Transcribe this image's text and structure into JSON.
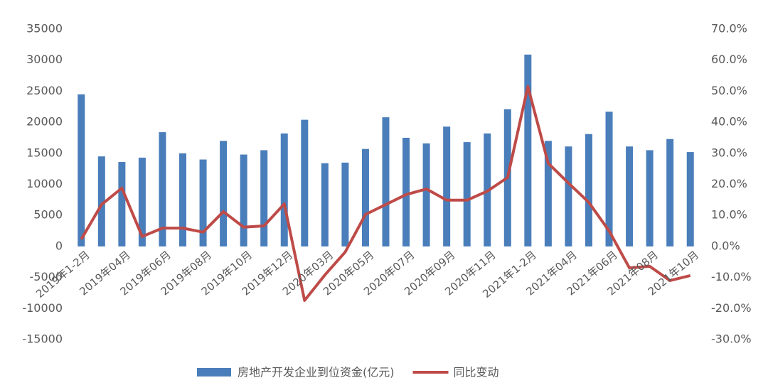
{
  "chart_data": {
    "type": "bar-line",
    "categories": [
      "2019年1-2月",
      null,
      "2019年04月",
      null,
      "2019年06月",
      null,
      "2019年08月",
      null,
      "2019年10月",
      null,
      "2019年12月",
      null,
      "2020年03月",
      null,
      "2020年05月",
      null,
      "2020年07月",
      null,
      "2020年09月",
      null,
      "2020年11月",
      null,
      "2021年1-2月",
      null,
      "2021年04月",
      null,
      "2021年06月",
      null,
      "2021年08月",
      null,
      "2021年10月"
    ],
    "series": [
      {
        "name": "房地产开发企业到位资金(亿元)",
        "type": "bar",
        "color": "#4a7ebb",
        "values": [
          24500,
          14500,
          13600,
          14300,
          18400,
          15000,
          14000,
          17000,
          14800,
          15500,
          18200,
          20400,
          13400,
          13500,
          15700,
          20800,
          17500,
          16600,
          19300,
          16800,
          18200,
          22100,
          30900,
          17000,
          16100,
          18100,
          21700,
          16100,
          15500,
          17300,
          15200
        ]
      },
      {
        "name": "同比变动",
        "type": "line",
        "axis": "y2",
        "color": "#be4b48",
        "values": [
          2.3,
          13.5,
          18.8,
          3.2,
          5.9,
          5.9,
          4.6,
          11.2,
          6.2,
          6.6,
          13.7,
          -17.4,
          -9.2,
          -1.8,
          10.3,
          13.5,
          16.7,
          18.5,
          14.9,
          14.9,
          17.8,
          22.2,
          51.5,
          26.8,
          20.4,
          14.2,
          5.0,
          -6.9,
          -6.4,
          -11.0,
          -9.4
        ]
      }
    ],
    "ylim": [
      -15000,
      35000
    ],
    "yticks": [
      -15000,
      -10000,
      -5000,
      0,
      5000,
      10000,
      15000,
      20000,
      25000,
      30000,
      35000
    ],
    "y2lim": [
      -30,
      70
    ],
    "y2ticks": [
      {
        "value": -30,
        "label": "-30.0%"
      },
      {
        "value": -20,
        "label": "-20.0%"
      },
      {
        "value": -10,
        "label": "-10.0%"
      },
      {
        "value": 0,
        "label": "0.0%"
      },
      {
        "value": 10,
        "label": "10.0%"
      },
      {
        "value": 20,
        "label": "20.0%"
      },
      {
        "value": 30,
        "label": "30.0%"
      },
      {
        "value": 40,
        "label": "40.0%"
      },
      {
        "value": 50,
        "label": "50.0%"
      },
      {
        "value": 60,
        "label": "60.0%"
      },
      {
        "value": 70,
        "label": "70.0%"
      }
    ],
    "grid": false,
    "legend": "bottom"
  }
}
